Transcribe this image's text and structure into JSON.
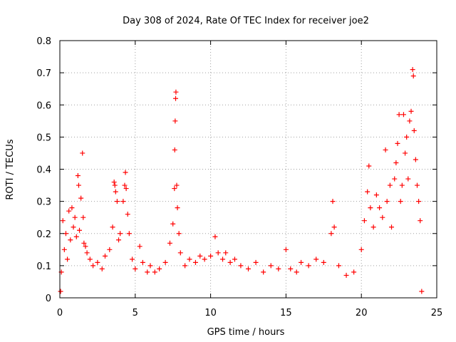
{
  "chart_data": {
    "type": "scatter",
    "title": "Day 308 of 2024, Rate Of TEC Index for receiver joe2",
    "xlabel": "GPS time / hours",
    "ylabel": "ROTI / TECUs",
    "xlim": [
      0,
      25
    ],
    "ylim": [
      0,
      0.8
    ],
    "xticks": [
      0,
      5,
      10,
      15,
      20,
      25
    ],
    "xtick_labels": [
      "0",
      "5",
      "10",
      "15",
      "20",
      "25"
    ],
    "yticks": [
      0,
      0.1,
      0.2,
      0.3,
      0.4,
      0.5,
      0.6,
      0.7,
      0.8
    ],
    "ytick_labels": [
      "0",
      "0.1",
      "0.2",
      "0.3",
      "0.4",
      "0.5",
      "0.6",
      "0.7",
      "0.8"
    ],
    "grid": true,
    "marker": "+",
    "color": "#ff0000",
    "series": [
      {
        "name": "ROTI",
        "points": [
          [
            0.05,
            0.02
          ],
          [
            0.1,
            0.08
          ],
          [
            0.2,
            0.24
          ],
          [
            0.3,
            0.15
          ],
          [
            0.4,
            0.2
          ],
          [
            0.5,
            0.12
          ],
          [
            0.6,
            0.27
          ],
          [
            0.7,
            0.18
          ],
          [
            0.8,
            0.28
          ],
          [
            0.9,
            0.22
          ],
          [
            1.0,
            0.25
          ],
          [
            1.1,
            0.19
          ],
          [
            1.2,
            0.38
          ],
          [
            1.25,
            0.35
          ],
          [
            1.3,
            0.21
          ],
          [
            1.4,
            0.31
          ],
          [
            1.5,
            0.45
          ],
          [
            1.55,
            0.25
          ],
          [
            1.6,
            0.17
          ],
          [
            1.7,
            0.16
          ],
          [
            1.8,
            0.14
          ],
          [
            2.0,
            0.12
          ],
          [
            2.2,
            0.1
          ],
          [
            2.5,
            0.11
          ],
          [
            2.8,
            0.09
          ],
          [
            3.0,
            0.13
          ],
          [
            3.3,
            0.15
          ],
          [
            3.5,
            0.22
          ],
          [
            3.6,
            0.36
          ],
          [
            3.65,
            0.35
          ],
          [
            3.7,
            0.33
          ],
          [
            3.8,
            0.3
          ],
          [
            3.9,
            0.18
          ],
          [
            4.0,
            0.2
          ],
          [
            4.2,
            0.3
          ],
          [
            4.3,
            0.35
          ],
          [
            4.35,
            0.39
          ],
          [
            4.4,
            0.34
          ],
          [
            4.5,
            0.26
          ],
          [
            4.6,
            0.2
          ],
          [
            4.8,
            0.12
          ],
          [
            5.0,
            0.09
          ],
          [
            5.3,
            0.16
          ],
          [
            5.5,
            0.11
          ],
          [
            5.8,
            0.08
          ],
          [
            6.0,
            0.1
          ],
          [
            6.3,
            0.08
          ],
          [
            6.6,
            0.09
          ],
          [
            7.0,
            0.11
          ],
          [
            7.3,
            0.17
          ],
          [
            7.5,
            0.23
          ],
          [
            7.6,
            0.34
          ],
          [
            7.62,
            0.46
          ],
          [
            7.65,
            0.55
          ],
          [
            7.68,
            0.62
          ],
          [
            7.7,
            0.64
          ],
          [
            7.75,
            0.35
          ],
          [
            7.8,
            0.28
          ],
          [
            7.9,
            0.2
          ],
          [
            8.0,
            0.14
          ],
          [
            8.3,
            0.1
          ],
          [
            8.6,
            0.12
          ],
          [
            9.0,
            0.11
          ],
          [
            9.3,
            0.13
          ],
          [
            9.6,
            0.12
          ],
          [
            10.0,
            0.13
          ],
          [
            10.3,
            0.19
          ],
          [
            10.5,
            0.14
          ],
          [
            10.8,
            0.12
          ],
          [
            11.0,
            0.14
          ],
          [
            11.3,
            0.11
          ],
          [
            11.6,
            0.12
          ],
          [
            12.0,
            0.1
          ],
          [
            12.5,
            0.09
          ],
          [
            13.0,
            0.11
          ],
          [
            13.5,
            0.08
          ],
          [
            14.0,
            0.1
          ],
          [
            14.5,
            0.09
          ],
          [
            15.0,
            0.15
          ],
          [
            15.3,
            0.09
          ],
          [
            15.7,
            0.08
          ],
          [
            16.0,
            0.11
          ],
          [
            16.5,
            0.1
          ],
          [
            17.0,
            0.12
          ],
          [
            17.5,
            0.11
          ],
          [
            18.0,
            0.2
          ],
          [
            18.1,
            0.3
          ],
          [
            18.2,
            0.22
          ],
          [
            18.5,
            0.1
          ],
          [
            19.0,
            0.07
          ],
          [
            19.5,
            0.08
          ],
          [
            20.0,
            0.15
          ],
          [
            20.2,
            0.24
          ],
          [
            20.4,
            0.33
          ],
          [
            20.5,
            0.41
          ],
          [
            20.6,
            0.28
          ],
          [
            20.8,
            0.22
          ],
          [
            21.0,
            0.32
          ],
          [
            21.2,
            0.28
          ],
          [
            21.4,
            0.25
          ],
          [
            21.6,
            0.46
          ],
          [
            21.7,
            0.3
          ],
          [
            21.9,
            0.35
          ],
          [
            22.0,
            0.22
          ],
          [
            22.2,
            0.37
          ],
          [
            22.3,
            0.42
          ],
          [
            22.4,
            0.48
          ],
          [
            22.5,
            0.57
          ],
          [
            22.6,
            0.3
          ],
          [
            22.7,
            0.35
          ],
          [
            22.8,
            0.57
          ],
          [
            22.9,
            0.45
          ],
          [
            23.0,
            0.5
          ],
          [
            23.1,
            0.37
          ],
          [
            23.2,
            0.55
          ],
          [
            23.3,
            0.58
          ],
          [
            23.4,
            0.71
          ],
          [
            23.45,
            0.69
          ],
          [
            23.5,
            0.52
          ],
          [
            23.6,
            0.43
          ],
          [
            23.7,
            0.35
          ],
          [
            23.8,
            0.3
          ],
          [
            23.9,
            0.24
          ],
          [
            24.0,
            0.02
          ]
        ]
      }
    ]
  }
}
